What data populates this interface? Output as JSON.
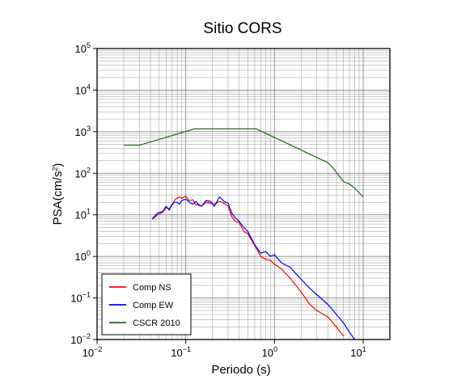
{
  "chart_data": {
    "type": "line",
    "title": "Sitio CORS",
    "xlabel": "Periodo (s)",
    "ylabel_base": "PSA(cm/s",
    "ylabel_sup": "2",
    "ylabel_close": ")",
    "x_scale": "log",
    "y_scale": "log",
    "xlim": [
      0.01,
      20
    ],
    "ylim": [
      0.01,
      100000
    ],
    "grid": true,
    "legend_position": "bottom-left",
    "x_ticks": [
      {
        "base": "10",
        "exp": "−2",
        "value": 0.01
      },
      {
        "base": "10",
        "exp": "−1",
        "value": 0.1
      },
      {
        "base": "10",
        "exp": "0",
        "value": 1
      },
      {
        "base": "10",
        "exp": "1",
        "value": 10
      }
    ],
    "y_ticks": [
      {
        "base": "10",
        "exp": "−2",
        "value": 0.01
      },
      {
        "base": "10",
        "exp": "−1",
        "value": 0.1
      },
      {
        "base": "10",
        "exp": "0",
        "value": 1
      },
      {
        "base": "10",
        "exp": "1",
        "value": 10
      },
      {
        "base": "10",
        "exp": "2",
        "value": 100
      },
      {
        "base": "10",
        "exp": "3",
        "value": 1000
      },
      {
        "base": "10",
        "exp": "4",
        "value": 10000
      },
      {
        "base": "10",
        "exp": "5",
        "value": 100000
      }
    ],
    "series": [
      {
        "name": "Comp NS",
        "color": "#ff0000",
        "x": [
          0.042,
          0.048,
          0.055,
          0.06,
          0.065,
          0.07,
          0.075,
          0.08,
          0.085,
          0.09,
          0.1,
          0.11,
          0.12,
          0.13,
          0.14,
          0.15,
          0.17,
          0.19,
          0.21,
          0.24,
          0.27,
          0.3,
          0.33,
          0.36,
          0.4,
          0.45,
          0.5,
          0.6,
          0.7,
          0.8,
          0.9,
          1.0,
          1.2,
          1.5,
          2.0,
          2.5,
          3.0,
          4.0,
          5.0,
          6.0
        ],
        "y": [
          7.8,
          10,
          11.5,
          15,
          14,
          17,
          23,
          25,
          27,
          25,
          28,
          22,
          23,
          17,
          18,
          16,
          20,
          19,
          18,
          21,
          19,
          16,
          9,
          7,
          6.5,
          4,
          3.5,
          1.8,
          1.0,
          0.85,
          0.8,
          0.65,
          0.5,
          0.3,
          0.14,
          0.07,
          0.05,
          0.035,
          0.02,
          0.012
        ]
      },
      {
        "name": "Comp EW",
        "color": "#0000ff",
        "x": [
          0.042,
          0.048,
          0.055,
          0.06,
          0.065,
          0.07,
          0.075,
          0.08,
          0.085,
          0.09,
          0.1,
          0.11,
          0.12,
          0.13,
          0.14,
          0.15,
          0.17,
          0.19,
          0.21,
          0.24,
          0.27,
          0.3,
          0.33,
          0.36,
          0.4,
          0.45,
          0.5,
          0.6,
          0.7,
          0.8,
          0.9,
          1.0,
          1.2,
          1.5,
          2.0,
          2.5,
          3.0,
          4.0,
          5.0,
          6.0,
          7.0,
          8.0
        ],
        "y": [
          8,
          11,
          12,
          16,
          13,
          18,
          20,
          20,
          18,
          22,
          24,
          20,
          18,
          21,
          17,
          16,
          22,
          21,
          16,
          27,
          21,
          19,
          11,
          8.5,
          7,
          5,
          4,
          1.9,
          1.2,
          1.3,
          1.0,
          1.1,
          0.7,
          0.55,
          0.28,
          0.17,
          0.12,
          0.07,
          0.04,
          0.025,
          0.015,
          0.01
        ]
      },
      {
        "name": "CSCR 2010",
        "color": "#1a6e1a",
        "x": [
          0.02,
          0.03,
          0.125,
          0.625,
          4.0,
          4.5,
          5.0,
          6.0,
          7.0,
          8.0,
          10.0
        ],
        "y": [
          470,
          470,
          1170,
          1170,
          180,
          140,
          105,
          63,
          55,
          44,
          27
        ]
      }
    ]
  }
}
